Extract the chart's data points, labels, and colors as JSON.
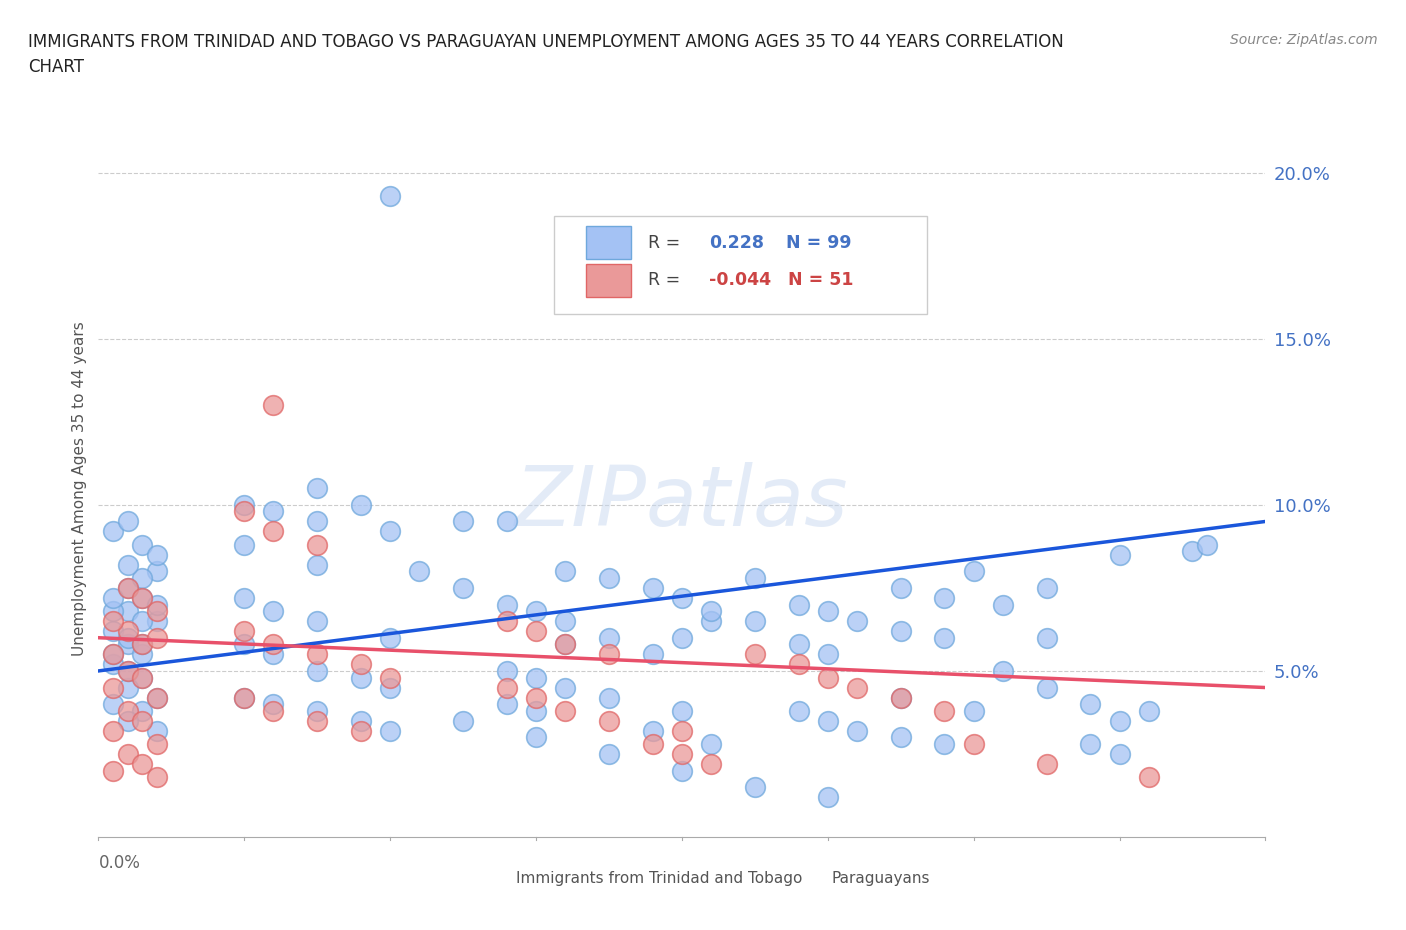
{
  "title_line1": "IMMIGRANTS FROM TRINIDAD AND TOBAGO VS PARAGUAYAN UNEMPLOYMENT AMONG AGES 35 TO 44 YEARS CORRELATION",
  "title_line2": "CHART",
  "source": "Source: ZipAtlas.com",
  "ylabel": "Unemployment Among Ages 35 to 44 years",
  "xlim": [
    0.0,
    0.08
  ],
  "ylim": [
    0.0,
    0.21
  ],
  "ytick_vals": [
    0.05,
    0.1,
    0.15,
    0.2
  ],
  "ytick_labels": [
    "5.0%",
    "10.0%",
    "15.0%",
    "20.0%"
  ],
  "r_blue": 0.228,
  "n_blue": 99,
  "r_pink": -0.044,
  "n_pink": 51,
  "blue_color": "#a4c2f4",
  "pink_color": "#ea9999",
  "blue_edge": "#6fa8dc",
  "pink_edge": "#e06666",
  "blue_line_color": "#1a56db",
  "pink_line_color": "#e8506a",
  "watermark": "ZIPatlas",
  "legend_label_blue": [
    "R = ",
    "0.228",
    "N = 99"
  ],
  "legend_label_pink": [
    "R = ",
    "-0.044",
    "N = 51"
  ],
  "bottom_legend": [
    "Immigrants from Trinidad and Tobago",
    "Paraguayans"
  ]
}
